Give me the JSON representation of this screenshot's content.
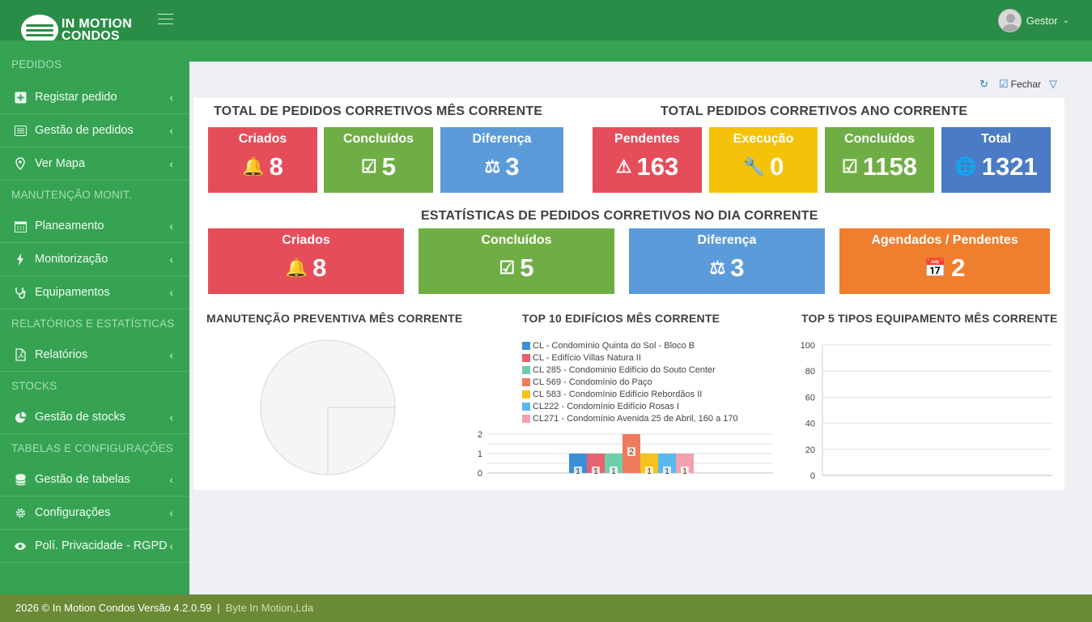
{
  "brand": {
    "line1": "IN MOTION",
    "line1_a": "IN ",
    "line1_b": "MOTION",
    "line2": "CONDOS"
  },
  "user": {
    "name": "Gestor"
  },
  "sidebar": {
    "sections": [
      {
        "title": "PEDIDOS",
        "items": [
          {
            "label": "Registar pedido",
            "icon": "plus-square-icon"
          },
          {
            "label": "Gestão de pedidos",
            "icon": "list-icon"
          },
          {
            "label": "Ver Mapa",
            "icon": "map-pin-icon"
          }
        ]
      },
      {
        "title": "MANUTENÇÃO MONIT.",
        "items": [
          {
            "label": "Planeamento",
            "icon": "calendar-icon"
          },
          {
            "label": "Monitorização",
            "icon": "bolt-icon"
          },
          {
            "label": "Equipamentos",
            "icon": "stethoscope-icon"
          }
        ]
      },
      {
        "title": "RELATÓRIOS E ESTATÍSTICAS",
        "items": [
          {
            "label": "Relatórios",
            "icon": "pdf-file-icon"
          }
        ]
      },
      {
        "title": "STOCKS",
        "items": [
          {
            "label": "Gestão de stocks",
            "icon": "pie-chart-icon"
          }
        ]
      },
      {
        "title": "TABELAS E CONFIGURAÇÕES",
        "items": [
          {
            "label": "Gestão de tabelas",
            "icon": "database-icon"
          },
          {
            "label": "Configurações",
            "icon": "gear-icon"
          },
          {
            "label": "Polí. Privacidade - RGPD",
            "icon": "eye-icon"
          }
        ]
      }
    ]
  },
  "toolbar": {
    "close_label": "Fechar"
  },
  "month": {
    "title": "TOTAL DE PEDIDOS CORRETIVOS MÊS CORRENTE",
    "boxes": [
      {
        "label": "Criados",
        "value": "8",
        "color": "#e64d5a"
      },
      {
        "label": "Concluídos",
        "value": "5",
        "color": "#6fae45"
      },
      {
        "label": "Diferença",
        "value": "3",
        "color": "#5b9bd9"
      }
    ]
  },
  "year": {
    "title": "TOTAL PEDIDOS CORRETIVOS ANO CORRENTE",
    "boxes": [
      {
        "label": "Pendentes",
        "value": "163",
        "color": "#e64d5a"
      },
      {
        "label": "Execução",
        "value": "0",
        "color": "#f5c20a"
      },
      {
        "label": "Concluídos",
        "value": "1158",
        "color": "#6fae45"
      },
      {
        "label": "Total",
        "value": "1321",
        "color": "#4a7bc4"
      }
    ]
  },
  "day": {
    "title": "ESTATÍSTICAS DE PEDIDOS CORRETIVOS NO DIA CORRENTE",
    "boxes": [
      {
        "label": "Criados",
        "value": "8",
        "color": "#e64d5a"
      },
      {
        "label": "Concluídos",
        "value": "5",
        "color": "#6fae45"
      },
      {
        "label": "Diferença",
        "value": "3",
        "color": "#5b9bd9"
      },
      {
        "label": "Agendados / Pendentes",
        "value": "2",
        "color": "#f07e2f"
      }
    ]
  },
  "charts": {
    "preventive_title": "MANUTENÇÃO PREVENTIVA MÊS CORRENTE",
    "buildings_title": "TOP 10 EDIFÍCIOS MÊS CORRENTE",
    "equipment_title": "TOP 5 TIPOS EQUIPAMENTO MÊS CORRENTE"
  },
  "chart_data": [
    {
      "type": "pie",
      "title": "MANUTENÇÃO PREVENTIVA MÊS CORRENTE",
      "slices": []
    },
    {
      "type": "bar",
      "title": "TOP 10 EDIFÍCIOS MÊS CORRENTE",
      "ylim": [
        0,
        2
      ],
      "yticks": [
        "0",
        "1",
        "2"
      ],
      "series": [
        {
          "name": "CL - Condomínio Quinta do Sol - Bloco B",
          "value": 1,
          "color": "#3a8fd6"
        },
        {
          "name": "CL - Edifício Villas Natura II",
          "value": 1,
          "color": "#e8616e"
        },
        {
          "name": "CL 285 - Condominio Edifício do Souto Center",
          "value": 1,
          "color": "#6fcfa9"
        },
        {
          "name": "CL 569 - Condomínio do Paço",
          "value": 2,
          "color": "#ef7b5c"
        },
        {
          "name": "CL 583 - Condomínio Edifício Rebordãos II",
          "value": 1,
          "color": "#f6c21c"
        },
        {
          "name": "CL222 - Condomínio Edifício Rosas I",
          "value": 1,
          "color": "#5bb7ef"
        },
        {
          "name": "CL271 - Condomínio Avenida 25 de Abril, 160 a 170",
          "value": 1,
          "color": "#f5a1ad"
        }
      ]
    },
    {
      "type": "bar",
      "title": "TOP 5 TIPOS EQUIPAMENTO MÊS CORRENTE",
      "ylim": [
        0,
        100
      ],
      "yticks": [
        "0",
        "20",
        "40",
        "60",
        "80",
        "100"
      ],
      "series": []
    }
  ],
  "footer": {
    "text": "2026 © In Motion Condos Versão 4.2.0.59",
    "company": "Byte In Motion,Lda"
  }
}
